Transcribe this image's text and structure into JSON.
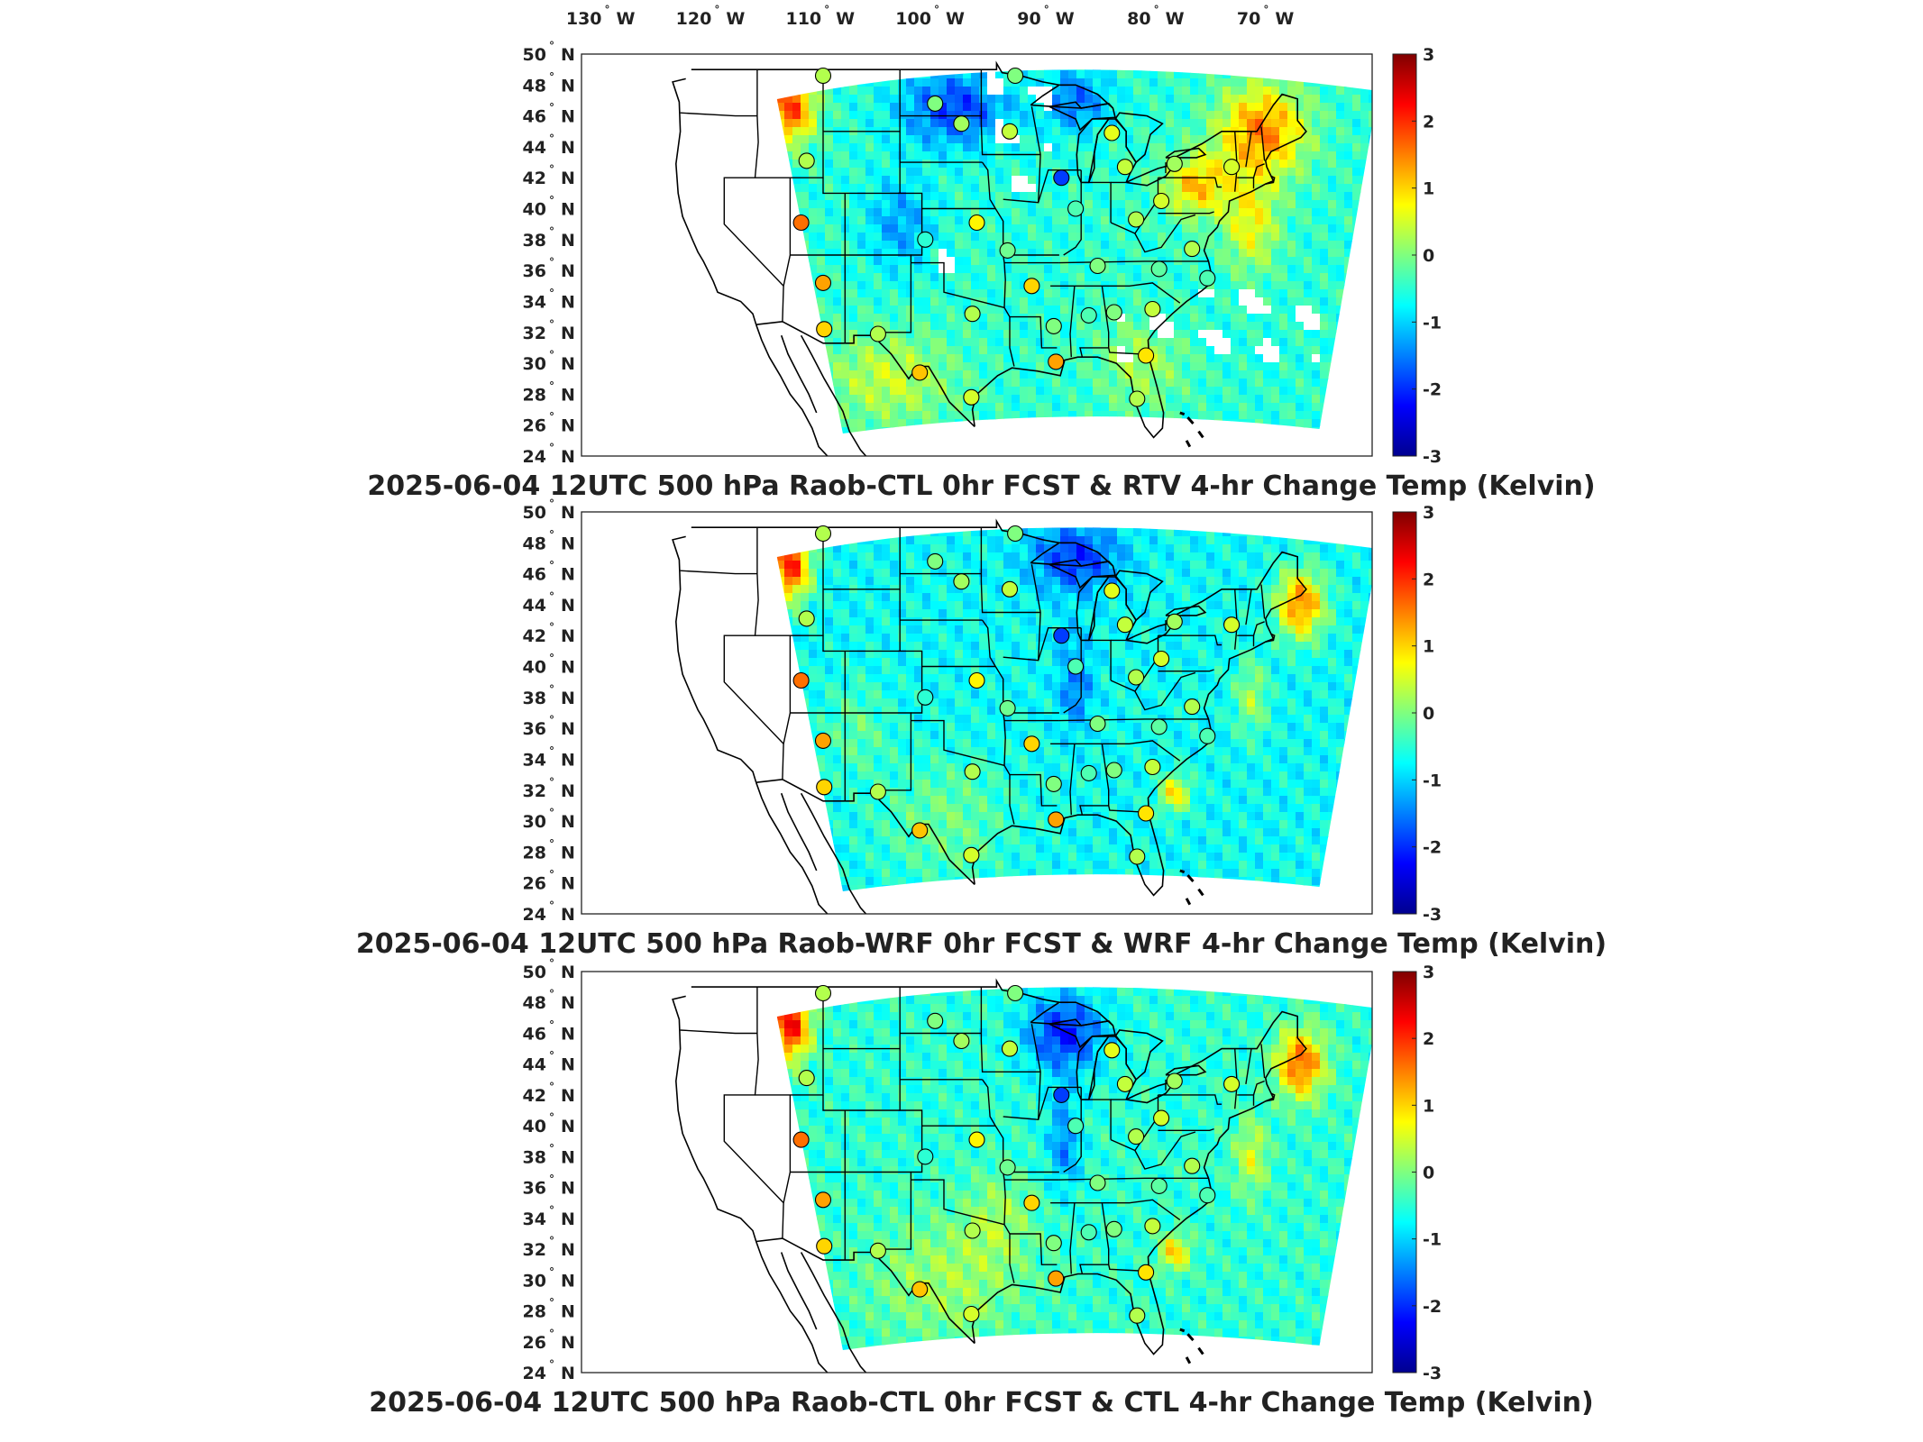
{
  "top_axis": {
    "longitudes": [
      {
        "deg": "130",
        "hem": "W"
      },
      {
        "deg": "120",
        "hem": "W"
      },
      {
        "deg": "110",
        "hem": "W"
      },
      {
        "deg": "100",
        "hem": "W"
      },
      {
        "deg": "90",
        "hem": "W"
      },
      {
        "deg": "80",
        "hem": "W"
      },
      {
        "deg": "70",
        "hem": "W"
      }
    ]
  },
  "latitudes": [
    {
      "deg": "50",
      "hem": "N"
    },
    {
      "deg": "48",
      "hem": "N"
    },
    {
      "deg": "46",
      "hem": "N"
    },
    {
      "deg": "44",
      "hem": "N"
    },
    {
      "deg": "42",
      "hem": "N"
    },
    {
      "deg": "40",
      "hem": "N"
    },
    {
      "deg": "38",
      "hem": "N"
    },
    {
      "deg": "36",
      "hem": "N"
    },
    {
      "deg": "34",
      "hem": "N"
    },
    {
      "deg": "32",
      "hem": "N"
    },
    {
      "deg": "30",
      "hem": "N"
    },
    {
      "deg": "28",
      "hem": "N"
    },
    {
      "deg": "26",
      "hem": "N"
    },
    {
      "deg": "24",
      "hem": "N"
    }
  ],
  "colorbar": {
    "ticks": [
      "3",
      "2",
      "1",
      "0",
      "-1",
      "-2",
      "-3"
    ],
    "range": [
      -3,
      3
    ],
    "colormap": "jet",
    "stops": [
      "#00008f",
      "#0000ff",
      "#00ffff",
      "#ffff00",
      "#ff0000",
      "#800000"
    ]
  },
  "panels": [
    {
      "title": "2025-06-04 12UTC 500 hPa Raob-CTL 0hr FCST & RTV 4-hr Change Temp (Kelvin)",
      "field_source": "RTV",
      "has_missing_patches": true
    },
    {
      "title": "2025-06-04 12UTC 500 hPa Raob-WRF 0hr FCST & WRF 4-hr Change Temp (Kelvin)",
      "field_source": "WRF",
      "has_missing_patches": false
    },
    {
      "title": "2025-06-04 12UTC 500 hPa Raob-CTL 0hr FCST & CTL 4-hr Change Temp (Kelvin)",
      "field_source": "CTL",
      "has_missing_patches": false
    }
  ],
  "raob_stations": [
    {
      "lon": -111.0,
      "lat": 48.6,
      "value": 0.3
    },
    {
      "lon": -100.8,
      "lat": 46.8,
      "value": 0.0
    },
    {
      "lon": -98.4,
      "lat": 45.5,
      "value": 0.2
    },
    {
      "lon": -93.5,
      "lat": 48.6,
      "value": 0.0
    },
    {
      "lon": -94.0,
      "lat": 45.0,
      "value": 0.4
    },
    {
      "lon": -84.7,
      "lat": 44.9,
      "value": 0.6
    },
    {
      "lon": -83.5,
      "lat": 42.7,
      "value": 0.4
    },
    {
      "lon": -73.8,
      "lat": 42.7,
      "value": 0.5
    },
    {
      "lon": -79.0,
      "lat": 42.9,
      "value": 0.2
    },
    {
      "lon": -112.5,
      "lat": 43.1,
      "value": 0.3
    },
    {
      "lon": -89.3,
      "lat": 42.0,
      "value": -1.9
    },
    {
      "lon": -88.0,
      "lat": 40.0,
      "value": -0.3
    },
    {
      "lon": -82.5,
      "lat": 39.3,
      "value": 0.3
    },
    {
      "lon": -80.2,
      "lat": 40.5,
      "value": 0.5
    },
    {
      "lon": -77.4,
      "lat": 37.4,
      "value": 0.3
    },
    {
      "lon": -113.0,
      "lat": 39.1,
      "value": 1.6
    },
    {
      "lon": -101.7,
      "lat": 38.0,
      "value": -0.5
    },
    {
      "lon": -97.0,
      "lat": 39.1,
      "value": 0.8
    },
    {
      "lon": -94.2,
      "lat": 37.3,
      "value": -0.1
    },
    {
      "lon": -86.0,
      "lat": 36.3,
      "value": 0.0
    },
    {
      "lon": -80.4,
      "lat": 36.1,
      "value": -0.2
    },
    {
      "lon": -76.0,
      "lat": 35.5,
      "value": -0.3
    },
    {
      "lon": -111.0,
      "lat": 35.2,
      "value": 1.3
    },
    {
      "lon": -92.0,
      "lat": 35.0,
      "value": 1.0
    },
    {
      "lon": -97.4,
      "lat": 33.2,
      "value": 0.3
    },
    {
      "lon": -90.0,
      "lat": 32.4,
      "value": 0.0
    },
    {
      "lon": -86.8,
      "lat": 33.1,
      "value": -0.3
    },
    {
      "lon": -84.5,
      "lat": 33.3,
      "value": 0.0
    },
    {
      "lon": -81.0,
      "lat": 33.5,
      "value": 0.4
    },
    {
      "lon": -110.9,
      "lat": 32.2,
      "value": 1.0
    },
    {
      "lon": -106.0,
      "lat": 31.9,
      "value": 0.3
    },
    {
      "lon": -102.2,
      "lat": 29.4,
      "value": 1.1
    },
    {
      "lon": -97.5,
      "lat": 27.8,
      "value": 0.5
    },
    {
      "lon": -89.8,
      "lat": 30.1,
      "value": 1.3
    },
    {
      "lon": -81.6,
      "lat": 30.5,
      "value": 0.9
    },
    {
      "lon": -82.4,
      "lat": 27.7,
      "value": 0.3
    }
  ]
}
